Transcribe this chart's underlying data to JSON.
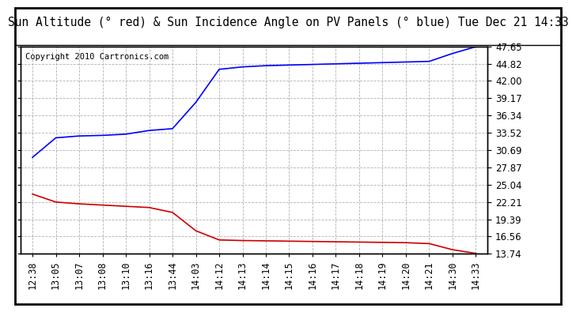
{
  "title": "Sun Altitude (° red) & Sun Incidence Angle on PV Panels (° blue) Tue Dec 21 14:33",
  "copyright": "Copyright 2010 Cartronics.com",
  "x_labels": [
    "12:38",
    "13:05",
    "13:07",
    "13:08",
    "13:10",
    "13:16",
    "13:44",
    "14:03",
    "14:12",
    "14:13",
    "14:14",
    "14:15",
    "14:16",
    "14:17",
    "14:18",
    "14:19",
    "14:20",
    "14:21",
    "14:30",
    "14:33"
  ],
  "y_ticks": [
    13.74,
    16.56,
    19.39,
    22.21,
    25.04,
    27.87,
    30.69,
    33.52,
    36.34,
    39.17,
    42.0,
    44.82,
    47.65
  ],
  "ylim_min": 13.74,
  "ylim_max": 47.65,
  "blue_y": [
    29.5,
    32.7,
    33.0,
    33.1,
    33.3,
    33.9,
    34.2,
    38.5,
    43.9,
    44.3,
    44.5,
    44.6,
    44.7,
    44.8,
    44.9,
    45.0,
    45.1,
    45.2,
    46.5,
    47.6
  ],
  "red_y": [
    23.5,
    22.2,
    21.9,
    21.7,
    21.5,
    21.3,
    20.5,
    17.5,
    16.0,
    15.9,
    15.85,
    15.8,
    15.75,
    15.7,
    15.65,
    15.6,
    15.55,
    15.4,
    14.4,
    13.8
  ],
  "blue_color": "#0000ff",
  "red_color": "#cc0000",
  "grid_color": "#aaaaaa",
  "bg_color": "#ffffff",
  "title_fontsize": 10.5,
  "tick_fontsize": 8.5,
  "copyright_fontsize": 7.5
}
